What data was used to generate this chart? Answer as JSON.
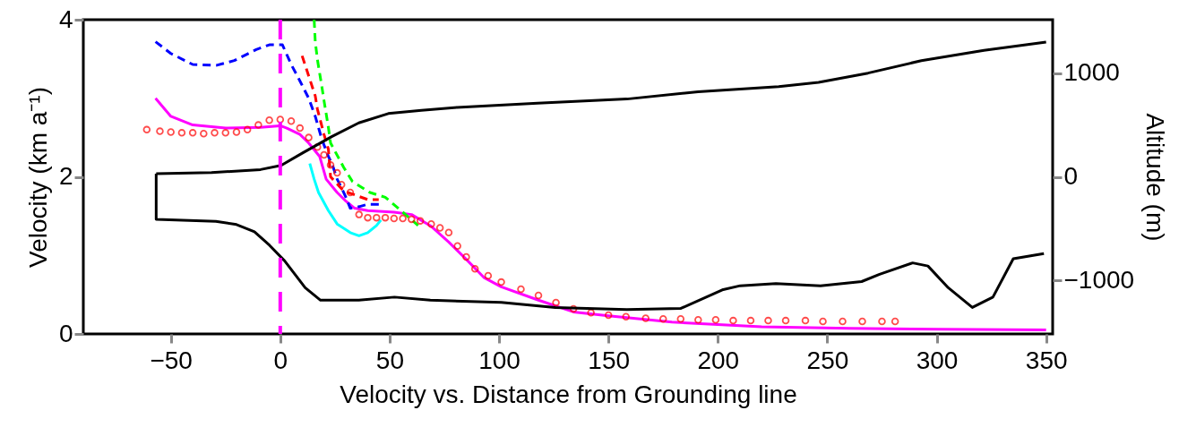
{
  "chart_data": {
    "type": "line",
    "xlabel": "Velocity vs. Distance from Grounding line",
    "ylabel": "Velocity (km a⁻¹)",
    "y2label": "Altitude (m)",
    "xlim": [
      -90,
      353
    ],
    "xticks": [
      {
        "value": -50,
        "label": "−50"
      },
      0,
      50,
      100,
      150,
      200,
      250,
      300,
      350
    ],
    "ylim": [
      0,
      4
    ],
    "yticks": [
      0,
      2,
      4
    ],
    "y2lim": [
      -1515,
      1515
    ],
    "y2ticks": [
      {
        "value": -1000,
        "label": "−1000"
      },
      0,
      {
        "value": 1000,
        "label": "1000"
      }
    ],
    "grid": false,
    "ref_lines": [
      {
        "axis": "x",
        "value": 0,
        "color": "#ff00ff",
        "line_style": "dashed"
      }
    ],
    "series": [
      {
        "axis": "y2",
        "color": "#000000",
        "line_style": "solid",
        "x": [
          -56.7,
          -31.4,
          -9,
          0.4,
          10.2,
          23.7,
          35.9,
          49.4,
          64.5,
          80.8,
          117.6,
          158.4,
          191,
          227.8,
          246,
          268.6,
          293,
          321.6,
          350
        ],
        "values": [
          30,
          40,
          70,
          110,
          230,
          390,
          520,
          610,
          640,
          670,
          710,
          750,
          820,
          870,
          910,
          1000,
          1120,
          1220,
          1300
        ]
      },
      {
        "axis": "y2",
        "color": "#000000",
        "line_style": "solid",
        "x": [
          -56.7,
          -56.7,
          -29.4,
          -20,
          -11.8,
          -4.9,
          2,
          11.4,
          18.4,
          35.9,
          52.2,
          68.6,
          101,
          125.7,
          158.4,
          182.9,
          202,
          210.2,
          226.5,
          246.9,
          265.7,
          273.9,
          289,
          296,
          305.3,
          316.3,
          325.7,
          335,
          349
        ],
        "values": [
          30,
          -410,
          -430,
          -460,
          -530,
          -660,
          -810,
          -1070,
          -1190,
          -1190,
          -1160,
          -1190,
          -1210,
          -1260,
          -1280,
          -1270,
          -1090,
          -1050,
          -1030,
          -1050,
          -1010,
          -940,
          -830,
          -860,
          -1070,
          -1260,
          -1160,
          -790,
          -740
        ]
      },
      {
        "type": "scatter",
        "marker": "circle",
        "color": "#ff0000",
        "x": [
          -61,
          -55,
          -50,
          -45,
          -40,
          -35,
          -30,
          -25,
          -20,
          -15,
          -10,
          -5,
          0,
          5,
          9,
          13,
          17,
          20,
          23,
          26,
          28,
          32,
          36,
          40,
          44,
          48,
          52,
          56,
          60,
          64,
          69,
          73,
          77,
          81,
          85,
          89,
          95,
          101,
          110,
          118,
          126,
          134,
          142,
          150,
          158,
          167,
          175,
          183,
          191,
          199,
          207,
          215,
          223,
          231,
          240,
          248,
          257,
          266,
          275,
          281
        ],
        "values": [
          2.6,
          2.58,
          2.57,
          2.56,
          2.56,
          2.55,
          2.56,
          2.56,
          2.57,
          2.6,
          2.66,
          2.72,
          2.73,
          2.71,
          2.62,
          2.5,
          2.38,
          2.28,
          2.15,
          2.05,
          1.9,
          1.8,
          1.52,
          1.48,
          1.48,
          1.48,
          1.47,
          1.47,
          1.46,
          1.44,
          1.4,
          1.35,
          1.29,
          1.12,
          0.98,
          0.83,
          0.74,
          0.66,
          0.57,
          0.49,
          0.4,
          0.32,
          0.27,
          0.24,
          0.22,
          0.2,
          0.19,
          0.19,
          0.18,
          0.18,
          0.17,
          0.17,
          0.17,
          0.17,
          0.17,
          0.16,
          0.16,
          0.16,
          0.16,
          0.16
        ]
      },
      {
        "color": "#ff00ff",
        "line_style": "solid",
        "x": [
          -57,
          -50,
          -40,
          -25,
          -9,
          0,
          3,
          9,
          13,
          18,
          21,
          26,
          30,
          34,
          40,
          52,
          60,
          69,
          77,
          85,
          93,
          101,
          118,
          134,
          150,
          179,
          220,
          260,
          301,
          350
        ],
        "values": [
          3.0,
          2.77,
          2.66,
          2.62,
          2.63,
          2.65,
          2.62,
          2.54,
          2.43,
          2.26,
          1.97,
          1.8,
          1.69,
          1.6,
          1.57,
          1.55,
          1.52,
          1.37,
          1.17,
          0.95,
          0.72,
          0.6,
          0.43,
          0.28,
          0.23,
          0.15,
          0.09,
          0.07,
          0.06,
          0.05
        ]
      },
      {
        "color": "#00ffff",
        "line_style": "solid",
        "x": [
          13.5,
          15.5,
          17.5,
          22,
          26,
          32,
          36,
          40,
          44,
          46
        ],
        "values": [
          2.17,
          1.97,
          1.8,
          1.57,
          1.4,
          1.29,
          1.25,
          1.29,
          1.38,
          1.45
        ]
      },
      {
        "color": "#0000ff",
        "line_style": "dashed",
        "x": [
          -57,
          -50,
          -40,
          -29,
          -21,
          -11,
          -5,
          1,
          5,
          9,
          13,
          16,
          19,
          22,
          24,
          26,
          28,
          30,
          32,
          36,
          40,
          44,
          46
        ],
        "values": [
          3.72,
          3.57,
          3.43,
          3.42,
          3.48,
          3.62,
          3.68,
          3.68,
          3.43,
          3.22,
          3.0,
          2.77,
          2.48,
          2.26,
          2.14,
          1.97,
          1.86,
          1.74,
          1.6,
          1.62,
          1.65,
          1.65,
          1.65
        ]
      },
      {
        "color": "#ff0000",
        "line_style": "dashed",
        "x": [
          10,
          12,
          16,
          17,
          20,
          22,
          23,
          29,
          40,
          45
        ],
        "values": [
          3.54,
          3.37,
          3.03,
          2.86,
          2.54,
          2.35,
          2.0,
          1.82,
          1.71,
          1.71
        ]
      },
      {
        "color": "#00ff00",
        "line_style": "dashed",
        "x": [
          15.5,
          16,
          17,
          19,
          20,
          22,
          23,
          29,
          33,
          41,
          48,
          56,
          63
        ],
        "values": [
          4.0,
          3.72,
          3.49,
          3.15,
          2.97,
          2.63,
          2.43,
          2.12,
          1.94,
          1.8,
          1.74,
          1.55,
          1.38
        ]
      }
    ]
  }
}
